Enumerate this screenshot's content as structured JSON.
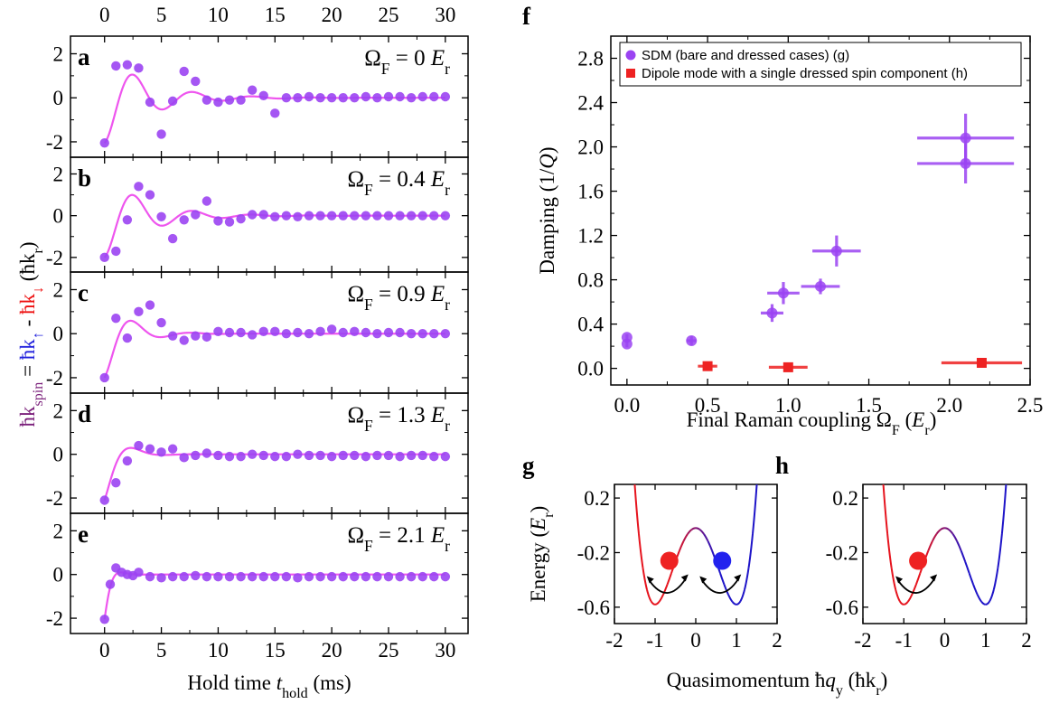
{
  "colors": {
    "sdm": "#9b44f2",
    "fit": "#ee55ee",
    "dipole": "#ee2222",
    "spin_up": "#2222dd",
    "spin_down": "#ee1111",
    "ylabel_purple": "#7a1f7a"
  },
  "chart_data": [
    {
      "type": "scatter",
      "id": "a-e",
      "xlabel": "Hold time t_hold (ms)",
      "xlabel_main": "Hold time ",
      "xlabel_var": "t",
      "xlabel_sub": "hold",
      "xlabel_unit": " (ms)",
      "ylabel": "ħk_spin = ħk↑ - ħk↓ (ħk_r)",
      "ylabel_parts": {
        "lhs": "ħk",
        "lhs_sub": "spin",
        "eq": " = ",
        "up": "ħk",
        "up_sub": "↑",
        "minus": " - ",
        "down": "ħk",
        "down_sub": "↓",
        "unit": " (ħk",
        "unit_sub": "r",
        "unit_close": ")"
      },
      "xlim": [
        -3,
        32
      ],
      "ylim": [
        -2.7,
        2.8
      ],
      "xticks": [
        0,
        5,
        10,
        15,
        20,
        25,
        30
      ],
      "xtick_labels": [
        "0",
        "5",
        "10",
        "15",
        "20",
        "25",
        "30"
      ],
      "yticks": [
        -2,
        0,
        2
      ],
      "ytick_labels": [
        "-2",
        "0",
        "2"
      ],
      "panels": [
        {
          "letter": "a",
          "label_prefix": "Ω",
          "label_sub": "F",
          "label_value": " = 0 ",
          "label_unit": "E",
          "label_unit_sub": "r",
          "omega_F": 0,
          "x": [
            0,
            1,
            2,
            3,
            4,
            5,
            6,
            7,
            8,
            9,
            10,
            11,
            12,
            13,
            14,
            15,
            16,
            17,
            18,
            19,
            20,
            21,
            22,
            23,
            24,
            25,
            26,
            27,
            28,
            29,
            30
          ],
          "y": [
            -2.05,
            1.45,
            1.5,
            1.35,
            -0.2,
            -1.65,
            -0.15,
            1.2,
            0.75,
            -0.1,
            -0.2,
            -0.1,
            -0.1,
            0.35,
            0.1,
            -0.7,
            0.0,
            0.0,
            0.05,
            0.0,
            0.0,
            0.0,
            0.0,
            0.05,
            0.0,
            0.05,
            0.05,
            0.0,
            0.05,
            0.05,
            0.05
          ],
          "fit": {
            "amp": -2.05,
            "omega": 1.2,
            "tau": 3.8,
            "phase": 0.0
          }
        },
        {
          "letter": "b",
          "label_prefix": "Ω",
          "label_sub": "F",
          "label_value": " = 0.4 ",
          "label_unit": "E",
          "label_unit_sub": "r",
          "omega_F": 0.4,
          "x": [
            0,
            1,
            2,
            3,
            4,
            5,
            6,
            7,
            8,
            9,
            10,
            11,
            12,
            13,
            14,
            15,
            16,
            17,
            18,
            19,
            20,
            21,
            22,
            23,
            24,
            25,
            26,
            27,
            28,
            29,
            30
          ],
          "y": [
            -2.0,
            -1.7,
            -0.2,
            1.4,
            1.0,
            -0.05,
            -1.1,
            -0.2,
            0.05,
            0.7,
            -0.25,
            -0.3,
            -0.15,
            0.05,
            0.05,
            -0.05,
            0.0,
            -0.05,
            0.0,
            0.0,
            0.0,
            0.0,
            0.0,
            0.0,
            0.0,
            0.0,
            0.0,
            0.0,
            0.0,
            0.0,
            0.0
          ],
          "fit": {
            "amp": -2.0,
            "omega": 1.2,
            "tau": 3.6,
            "phase": 0.0
          }
        },
        {
          "letter": "c",
          "label_prefix": "Ω",
          "label_sub": "F",
          "label_value": " = 0.9 ",
          "label_unit": "E",
          "label_unit_sub": "r",
          "omega_F": 0.9,
          "x": [
            0,
            1,
            2,
            3,
            4,
            5,
            6,
            7,
            8,
            9,
            10,
            11,
            12,
            13,
            14,
            15,
            16,
            17,
            18,
            19,
            20,
            21,
            22,
            23,
            24,
            25,
            26,
            27,
            28,
            29,
            30
          ],
          "y": [
            -2.0,
            0.7,
            -0.2,
            1.0,
            1.3,
            0.5,
            -0.1,
            -0.3,
            -0.1,
            -0.15,
            0.1,
            0.05,
            0.05,
            -0.05,
            0.1,
            0.1,
            0.0,
            0.05,
            0.0,
            0.1,
            0.2,
            0.05,
            0.1,
            0.05,
            0.0,
            0.05,
            0.05,
            0.0,
            0.0,
            0.0,
            0.0
          ],
          "fit": {
            "amp": -2.0,
            "omega": 1.2,
            "tau": 2.0,
            "phase": 0.0
          }
        },
        {
          "letter": "d",
          "label_prefix": "Ω",
          "label_sub": "F",
          "label_value": " = 1.3 ",
          "label_unit": "E",
          "label_unit_sub": "r",
          "omega_F": 1.3,
          "x": [
            0,
            1,
            2,
            3,
            4,
            5,
            6,
            7,
            8,
            9,
            10,
            11,
            12,
            13,
            14,
            15,
            16,
            17,
            18,
            19,
            20,
            21,
            22,
            23,
            24,
            25,
            26,
            27,
            28,
            29,
            30
          ],
          "y": [
            -2.1,
            -1.3,
            -0.3,
            0.4,
            0.25,
            0.1,
            0.25,
            -0.15,
            -0.05,
            0.05,
            -0.05,
            -0.1,
            -0.1,
            0.0,
            -0.05,
            -0.1,
            -0.1,
            0.0,
            -0.05,
            -0.05,
            -0.1,
            -0.05,
            -0.05,
            -0.1,
            -0.05,
            -0.05,
            -0.1,
            -0.05,
            -0.05,
            -0.1,
            -0.1
          ],
          "fit": {
            "amp": -2.1,
            "omega": 1.1,
            "tau": 1.3,
            "phase": 0.0
          }
        },
        {
          "letter": "e",
          "label_prefix": "Ω",
          "label_sub": "F",
          "label_value": " = 2.1 ",
          "label_unit": "E",
          "label_unit_sub": "r",
          "omega_F": 2.1,
          "x": [
            0,
            0.5,
            1,
            1.5,
            2,
            2.5,
            3,
            4,
            5,
            6,
            7,
            8,
            9,
            10,
            11,
            12,
            13,
            14,
            15,
            16,
            17,
            18,
            19,
            20,
            21,
            22,
            23,
            24,
            25,
            26,
            27,
            28,
            29,
            30
          ],
          "y": [
            -2.05,
            -0.45,
            0.3,
            0.1,
            0.0,
            -0.05,
            0.1,
            -0.1,
            -0.15,
            -0.1,
            -0.1,
            -0.05,
            -0.1,
            -0.1,
            -0.1,
            -0.1,
            -0.1,
            -0.1,
            -0.1,
            -0.1,
            -0.15,
            -0.1,
            -0.1,
            -0.1,
            -0.1,
            -0.1,
            -0.1,
            -0.1,
            -0.1,
            -0.1,
            -0.1,
            -0.1,
            -0.1,
            -0.1
          ],
          "fit": {
            "amp": -2.05,
            "omega": 1.6,
            "tau": 0.55,
            "phase": 0.0
          }
        }
      ]
    },
    {
      "type": "scatter",
      "id": "f",
      "letter": "f",
      "xlabel": "Final Raman coupling Ω_F (E_r)",
      "xlabel_main": "Final Raman coupling Ω",
      "xlabel_sub": "F",
      "xlabel_open": " (",
      "xlabel_var": "E",
      "xlabel_var_sub": "r",
      "xlabel_close": ")",
      "ylabel": "Damping (1/Q)",
      "ylabel_main": "Damping (1/",
      "ylabel_var": "Q",
      "ylabel_close": ")",
      "xlim": [
        -0.1,
        2.5
      ],
      "ylim": [
        -0.15,
        3.0
      ],
      "xticks": [
        0.0,
        0.5,
        1.0,
        1.5,
        2.0,
        2.5
      ],
      "xtick_labels": [
        "0.0",
        "0.5",
        "1.0",
        "1.5",
        "2.0",
        "2.5"
      ],
      "yticks": [
        0.0,
        0.4,
        0.8,
        1.2,
        1.6,
        2.0,
        2.4,
        2.8
      ],
      "ytick_labels": [
        "0.0",
        "0.4",
        "0.8",
        "1.2",
        "1.6",
        "2.0",
        "2.4",
        "2.8"
      ],
      "legend_position": "top-right",
      "series": [
        {
          "name": "SDM (bare and dressed cases) (g)",
          "marker": "circle",
          "x": [
            0.0,
            0.0,
            0.4,
            0.9,
            0.97,
            1.2,
            1.3,
            2.1,
            2.1
          ],
          "y": [
            0.22,
            0.28,
            0.25,
            0.5,
            0.68,
            0.74,
            1.06,
            1.85,
            2.08
          ],
          "xerr": [
            0.0,
            0.0,
            0.03,
            0.07,
            0.1,
            0.12,
            0.15,
            0.3,
            0.3
          ],
          "yerr": [
            0.03,
            0.03,
            0.04,
            0.08,
            0.1,
            0.07,
            0.14,
            0.18,
            0.22
          ]
        },
        {
          "name": "Dipole mode with a single dressed spin component (h)",
          "marker": "square",
          "x": [
            0.5,
            1.0,
            2.2
          ],
          "y": [
            0.02,
            0.01,
            0.05
          ],
          "xerr": [
            0.06,
            0.12,
            0.25
          ],
          "yerr": [
            0.04,
            0.03,
            0.02
          ]
        }
      ]
    },
    {
      "type": "line",
      "id": "g",
      "letter": "g",
      "xlabel": "Quasimomentum ħq_y (ħk_r)",
      "xlabel_main": "Quasimomentum ħ",
      "xlabel_var": "q",
      "xlabel_sub": "y",
      "xlabel_unit": " (ħk",
      "xlabel_unit_sub": "r",
      "xlabel_close": ")",
      "ylabel": "Energy (E_r)",
      "ylabel_main": "Energy (",
      "ylabel_var": "E",
      "ylabel_sub": "r",
      "ylabel_close": ")",
      "xlim": [
        -2,
        2
      ],
      "ylim": [
        -0.72,
        0.3
      ],
      "xticks": [
        -2,
        -1,
        0,
        1,
        2
      ],
      "xtick_labels": [
        "-2",
        "-1",
        "0",
        "1",
        "2"
      ],
      "yticks": [
        0.2,
        -0.2,
        -0.6
      ],
      "ytick_labels": [
        "0.2",
        "-0.2",
        "-0.6"
      ],
      "band": {
        "min_x": 1.0,
        "min_y": -0.58,
        "barrier_y": -0.02
      },
      "atoms": [
        {
          "x": -0.65,
          "y": -0.26,
          "color": "#ee2222"
        },
        {
          "x": 0.65,
          "y": -0.26,
          "color": "#2222ee"
        }
      ]
    },
    {
      "type": "line",
      "id": "h",
      "letter": "h",
      "xlim": [
        -2,
        2
      ],
      "ylim": [
        -0.72,
        0.3
      ],
      "xticks": [
        -2,
        -1,
        0,
        1,
        2
      ],
      "xtick_labels": [
        "-2",
        "-1",
        "0",
        "1",
        "2"
      ],
      "yticks": [
        0.2,
        -0.2,
        -0.6
      ],
      "ytick_labels": [
        "0.2",
        "-0.2",
        "-0.6"
      ],
      "band": {
        "min_x": 1.0,
        "min_y": -0.58,
        "barrier_y": -0.02
      },
      "atoms": [
        {
          "x": -0.65,
          "y": -0.26,
          "color": "#ee2222"
        }
      ]
    }
  ]
}
